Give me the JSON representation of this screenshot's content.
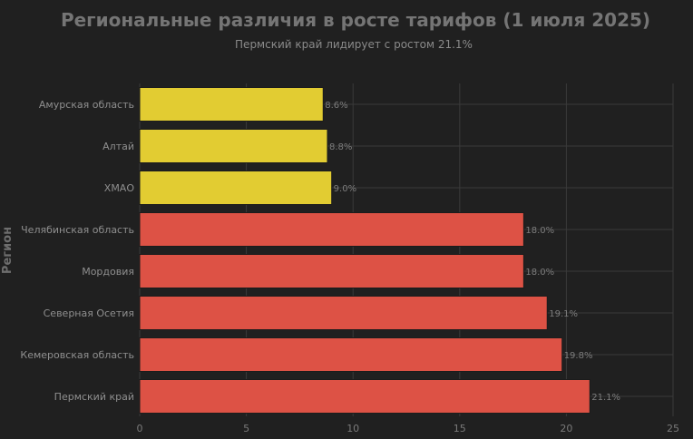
{
  "chart_data": {
    "type": "bar",
    "orientation": "horizontal",
    "title": "Региональные различия в росте тарифов (1 июля 2025)",
    "subtitle": "Пермский край лидирует с ростом 21.1%",
    "xlabel": "",
    "ylabel": "Регион",
    "xlim": [
      0,
      25
    ],
    "xticks": [
      0,
      5,
      10,
      15,
      20,
      25
    ],
    "grid": true,
    "categories": [
      "Амурская область",
      "Алтай",
      "ХМАО",
      "Челябинская область",
      "Мордовия",
      "Северная Осетия",
      "Кемеровская область",
      "Пермский край"
    ],
    "values": [
      8.6,
      8.8,
      9.0,
      18.0,
      18.0,
      19.1,
      19.8,
      21.1
    ],
    "value_labels": [
      "8.6%",
      "8.8%",
      "9.0%",
      "18.0%",
      "18.0%",
      "19.1%",
      "19.8%",
      "21.1%"
    ],
    "colors": [
      "#e2cc32",
      "#e2cc32",
      "#e2cc32",
      "#dd5245",
      "#dd5245",
      "#dd5245",
      "#dd5245",
      "#dd5245"
    ]
  },
  "colors": {
    "background": "#202020",
    "grid": "#3a3a3a",
    "bar_stroke": "#1c1c1c"
  }
}
